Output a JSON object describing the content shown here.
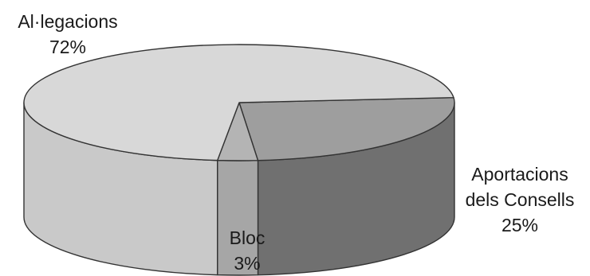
{
  "chart_data": {
    "type": "pie",
    "style": "3d",
    "slices": [
      {
        "label": "Al·legacions",
        "value": 72,
        "value_label": "72%",
        "color": "#d8d8d8",
        "side_color": "#c9c9c9"
      },
      {
        "label": "Aportacions dels Consells",
        "value": 25,
        "value_label": "25%",
        "color": "#9e9e9e",
        "side_color": "#707070"
      },
      {
        "label": "Bloc",
        "value": 3,
        "value_label": "3%",
        "color": "#b4b4b4",
        "side_color": "#a6a6a6"
      }
    ]
  }
}
